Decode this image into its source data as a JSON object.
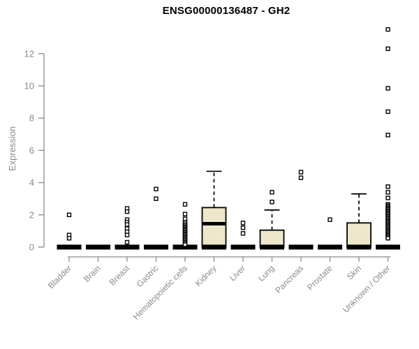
{
  "chart_data": {
    "type": "boxplot",
    "title": "ENSG00000136487 - GH2",
    "ylabel": "Expression",
    "xlabel": "",
    "ylim": [
      0,
      12
    ],
    "yticks": [
      0,
      2,
      4,
      6,
      8,
      10,
      12
    ],
    "grid": false,
    "legend_position": "none",
    "colors": {
      "box_fill": "#ede7cb",
      "box_stroke": "#000000",
      "median": "#000000",
      "outlier_stroke": "#000000",
      "axis": "#8a8a8a",
      "title": "#000000"
    },
    "categories": [
      "Bladder",
      "Brain",
      "Breast",
      "Gastric",
      "Hematopoietic cells",
      "Kidney",
      "Liver",
      "Lung",
      "Pancreas",
      "Prostate",
      "Skin",
      "Unknown / Other"
    ],
    "series": [
      {
        "name": "Bladder",
        "q1": 0,
        "median": 0,
        "q3": 0,
        "whisker_low": 0,
        "whisker_high": 0,
        "outliers": [
          2.0,
          0.75,
          0.55
        ]
      },
      {
        "name": "Brain",
        "q1": 0,
        "median": 0,
        "q3": 0,
        "whisker_low": 0,
        "whisker_high": 0,
        "outliers": []
      },
      {
        "name": "Breast",
        "q1": 0,
        "median": 0,
        "q3": 0,
        "whisker_low": 0,
        "whisker_high": 0,
        "outliers": [
          2.4,
          2.2,
          1.7,
          1.55,
          1.4,
          1.15,
          0.95,
          0.75,
          0.3
        ]
      },
      {
        "name": "Gastric",
        "q1": 0,
        "median": 0,
        "q3": 0,
        "whisker_low": 0,
        "whisker_high": 0,
        "outliers": [
          3.6,
          3.0
        ]
      },
      {
        "name": "Hematopoietic cells",
        "q1": 0,
        "median": 0,
        "q3": 0,
        "whisker_low": 0,
        "whisker_high": 0,
        "outliers": [
          2.65,
          2.05,
          1.75,
          1.55,
          1.45,
          1.35,
          1.27,
          1.2,
          1.12,
          1.05,
          0.97,
          0.9,
          0.82,
          0.75,
          0.67,
          0.6,
          0.52,
          0.45,
          0.37,
          0.3,
          0.22,
          0.15
        ]
      },
      {
        "name": "Kidney",
        "q1": 0,
        "median": 1.45,
        "q3": 2.45,
        "whisker_low": 0,
        "whisker_high": 4.7,
        "outliers": []
      },
      {
        "name": "Liver",
        "q1": 0,
        "median": 0,
        "q3": 0,
        "whisker_low": 0,
        "whisker_high": 0,
        "outliers": [
          1.5,
          1.2,
          0.85
        ]
      },
      {
        "name": "Lung",
        "q1": 0,
        "median": 0,
        "q3": 1.05,
        "whisker_low": 0,
        "whisker_high": 2.3,
        "outliers": [
          3.4,
          2.8
        ]
      },
      {
        "name": "Pancreas",
        "q1": 0,
        "median": 0,
        "q3": 0,
        "whisker_low": 0,
        "whisker_high": 0,
        "outliers": [
          4.65,
          4.3
        ]
      },
      {
        "name": "Prostate",
        "q1": 0,
        "median": 0,
        "q3": 0,
        "whisker_low": 0,
        "whisker_high": 0,
        "outliers": [
          1.7
        ]
      },
      {
        "name": "Skin",
        "q1": 0,
        "median": 0,
        "q3": 1.5,
        "whisker_low": 0,
        "whisker_high": 3.3,
        "outliers": []
      },
      {
        "name": "Unknown / Other",
        "q1": 0,
        "median": 0,
        "q3": 0,
        "whisker_low": 0,
        "whisker_high": 0,
        "outliers": [
          13.5,
          12.3,
          9.85,
          8.4,
          6.95,
          3.75,
          3.4,
          3.05,
          2.65,
          2.57,
          2.5,
          2.42,
          2.35,
          2.27,
          2.2,
          2.12,
          2.05,
          1.97,
          1.9,
          1.82,
          1.75,
          1.67,
          1.6,
          1.52,
          1.45,
          1.37,
          1.3,
          1.22,
          1.15,
          1.07,
          1.0,
          0.92,
          0.85,
          0.77,
          0.7,
          0.62,
          0.55
        ]
      }
    ]
  }
}
